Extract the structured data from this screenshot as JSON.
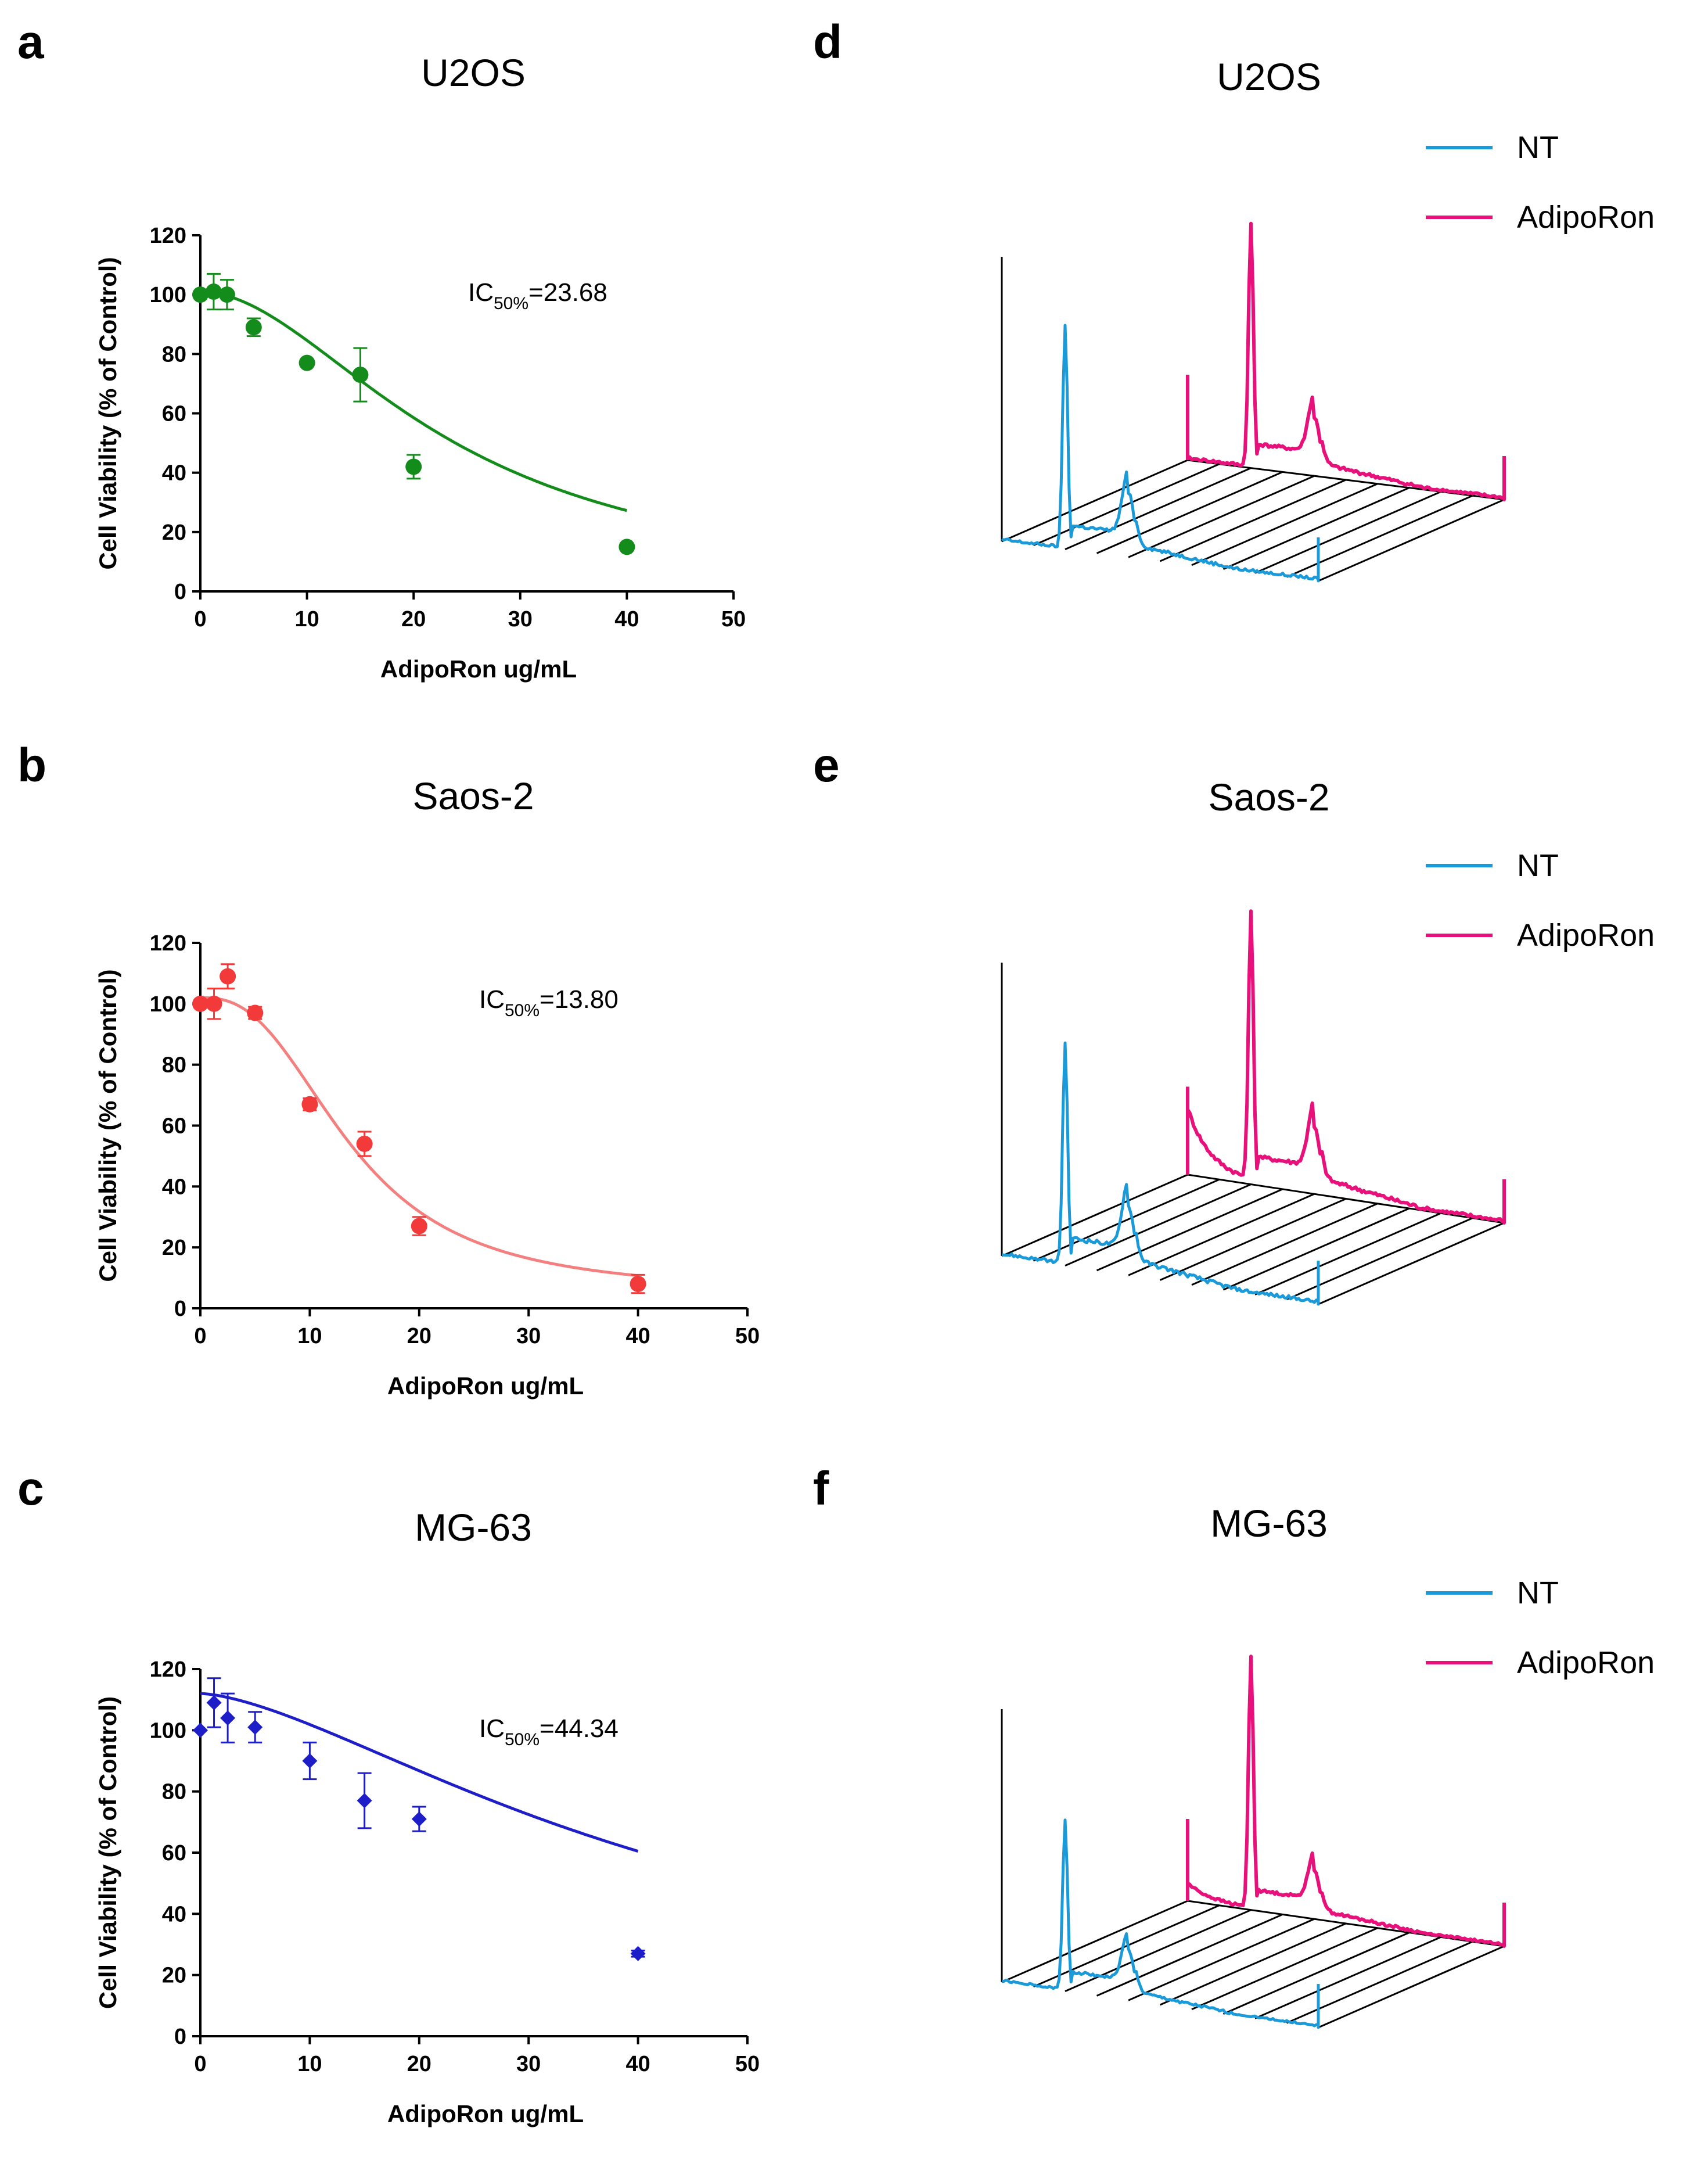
{
  "figure": {
    "colors": {
      "nt": "#1a9ad8",
      "adiporon": "#e8107a",
      "grid": "#000000"
    }
  },
  "chart_data": [
    {
      "panel": "a",
      "type": "scatter",
      "title": "U2OS",
      "xlabel": "AdipoRon ug/mL",
      "ylabel": "Cell Viability (% of Control)",
      "xlim": [
        0,
        50
      ],
      "ylim": [
        0,
        120
      ],
      "xticks": [
        0,
        10,
        20,
        30,
        40,
        50
      ],
      "yticks": [
        0,
        20,
        40,
        60,
        80,
        100,
        120
      ],
      "color": "#148c1c",
      "marker": "circle",
      "points": [
        {
          "x": 0,
          "y": 100,
          "err": 0
        },
        {
          "x": 1.25,
          "y": 101,
          "err": 6
        },
        {
          "x": 2.5,
          "y": 100,
          "err": 5
        },
        {
          "x": 5,
          "y": 89,
          "err": 3
        },
        {
          "x": 10,
          "y": 77,
          "err": 1
        },
        {
          "x": 15,
          "y": 73,
          "err": 9
        },
        {
          "x": 20,
          "y": 42,
          "err": 4
        },
        {
          "x": 40,
          "y": 15,
          "err": 1
        }
      ],
      "fit": {
        "ic50": 23.68,
        "hill": 1.9,
        "top": 101,
        "bottom": 0
      },
      "ic50_prefix": "IC",
      "ic50_sub": "50%",
      "ic50_value": "=23.68"
    },
    {
      "panel": "b",
      "type": "scatter",
      "title": "Saos-2",
      "xlabel": "AdipoRon ug/mL",
      "ylabel": "Cell Viability (% of Control)",
      "xlim": [
        0,
        50
      ],
      "ylim": [
        0,
        120
      ],
      "xticks": [
        0,
        10,
        20,
        30,
        40,
        50
      ],
      "yticks": [
        0,
        20,
        40,
        60,
        80,
        100,
        120
      ],
      "color": "#f23a3a",
      "line_color": "#f47f7f",
      "marker": "circle",
      "points": [
        {
          "x": 0,
          "y": 100,
          "err": 0
        },
        {
          "x": 1.25,
          "y": 100,
          "err": 5
        },
        {
          "x": 2.5,
          "y": 109,
          "err": 4
        },
        {
          "x": 5,
          "y": 97,
          "err": 2
        },
        {
          "x": 10,
          "y": 67,
          "err": 2
        },
        {
          "x": 15,
          "y": 54,
          "err": 4
        },
        {
          "x": 20,
          "y": 27,
          "err": 3
        },
        {
          "x": 40,
          "y": 8,
          "err": 3
        }
      ],
      "fit": {
        "ic50": 13.8,
        "hill": 2.6,
        "top": 102,
        "bottom": 5
      },
      "ic50_prefix": "IC",
      "ic50_sub": "50%",
      "ic50_value": "=13.80"
    },
    {
      "panel": "c",
      "type": "scatter",
      "title": "MG-63",
      "xlabel": "AdipoRon ug/mL",
      "ylabel": "Cell Viability (% of Control)",
      "xlim": [
        0,
        50
      ],
      "ylim": [
        0,
        120
      ],
      "xticks": [
        0,
        10,
        20,
        30,
        40,
        50
      ],
      "yticks": [
        0,
        20,
        40,
        60,
        80,
        100,
        120
      ],
      "color": "#1e1ec8",
      "marker": "diamond",
      "points": [
        {
          "x": 0,
          "y": 100,
          "err": 0
        },
        {
          "x": 1.25,
          "y": 109,
          "err": 8
        },
        {
          "x": 2.5,
          "y": 104,
          "err": 8
        },
        {
          "x": 5,
          "y": 101,
          "err": 5
        },
        {
          "x": 10,
          "y": 90,
          "err": 6
        },
        {
          "x": 15,
          "y": 77,
          "err": 9
        },
        {
          "x": 20,
          "y": 71,
          "err": 4
        },
        {
          "x": 40,
          "y": 27,
          "err": 1
        }
      ],
      "fit": {
        "ic50": 44.34,
        "hill": 1.55,
        "top": 112,
        "bottom": 0
      },
      "ic50_prefix": "IC",
      "ic50_sub": "50%",
      "ic50_value": "=44.34"
    },
    {
      "panel": "d",
      "type": "line",
      "title": "U2OS",
      "series": [
        {
          "name": "NT",
          "color": "#1a9ad8",
          "peaks": {
            "g1": 0.78,
            "g2": 0.22,
            "s": 0.04,
            "noise": 0.012
          }
        },
        {
          "name": "AdipoRon",
          "color": "#e8107a",
          "peaks": {
            "g1": 0.85,
            "g2": 0.2,
            "s": 0.04,
            "noise": 0.012,
            "debris": 0.0
          }
        }
      ]
    },
    {
      "panel": "e",
      "type": "line",
      "title": "Saos-2",
      "series": [
        {
          "name": "NT",
          "color": "#1a9ad8",
          "peaks": {
            "g1": 0.75,
            "g2": 0.23,
            "s": 0.05,
            "noise": 0.014
          }
        },
        {
          "name": "AdipoRon",
          "color": "#e8107a",
          "peaks": {
            "g1": 0.92,
            "g2": 0.22,
            "s": 0.05,
            "noise": 0.014,
            "debris": 0.22
          }
        }
      ]
    },
    {
      "panel": "f",
      "type": "line",
      "title": "MG-63",
      "series": [
        {
          "name": "NT",
          "color": "#1a9ad8",
          "peaks": {
            "g1": 0.62,
            "g2": 0.18,
            "s": 0.03,
            "noise": 0.01
          }
        },
        {
          "name": "AdipoRon",
          "color": "#e8107a",
          "peaks": {
            "g1": 0.92,
            "g2": 0.17,
            "s": 0.03,
            "noise": 0.01,
            "debris": 0.06
          }
        }
      ]
    }
  ]
}
